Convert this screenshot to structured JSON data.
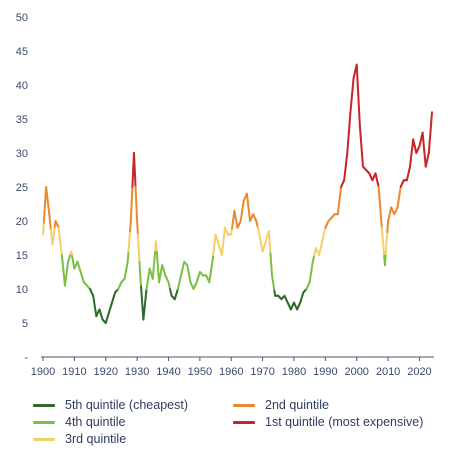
{
  "chart_data": {
    "type": "line",
    "y_ticks": [
      "-",
      "5",
      "10",
      "15",
      "20",
      "25",
      "30",
      "35",
      "40",
      "45",
      "50"
    ],
    "x_ticks": [
      "1900",
      "1910",
      "1920",
      "1930",
      "1940",
      "1950",
      "1960",
      "1970",
      "1980",
      "1990",
      "2000",
      "2010",
      "2020"
    ],
    "xlim": [
      1900,
      2024
    ],
    "ylim": [
      0,
      50
    ],
    "grid": false,
    "legend_position": "bottom",
    "bands": [
      {
        "name": "5th quintile (cheapest)",
        "color": "#2f6b2a",
        "min": 0,
        "max": 10
      },
      {
        "name": "4th quintile",
        "color": "#7bc043",
        "min": 10,
        "max": 15
      },
      {
        "name": "3rd quintile",
        "color": "#f5cf6a",
        "min": 15,
        "max": 19
      },
      {
        "name": "2nd quintile",
        "color": "#ea8a2e",
        "min": 19,
        "max": 25
      },
      {
        "name": "1st quintile (most expensive)",
        "color": "#c9242b",
        "min": 25,
        "max": 100
      }
    ],
    "x": [
      1900,
      1901,
      1902,
      1903,
      1904,
      1905,
      1906,
      1907,
      1908,
      1909,
      1910,
      1911,
      1912,
      1913,
      1914,
      1915,
      1916,
      1917,
      1918,
      1919,
      1920,
      1921,
      1922,
      1923,
      1924,
      1925,
      1926,
      1927,
      1928,
      1929,
      1930,
      1931,
      1932,
      1933,
      1934,
      1935,
      1936,
      1937,
      1938,
      1939,
      1940,
      1941,
      1942,
      1943,
      1944,
      1945,
      1946,
      1947,
      1948,
      1949,
      1950,
      1951,
      1952,
      1953,
      1954,
      1955,
      1956,
      1957,
      1958,
      1959,
      1960,
      1961,
      1962,
      1963,
      1964,
      1965,
      1966,
      1967,
      1968,
      1969,
      1970,
      1971,
      1972,
      1973,
      1974,
      1975,
      1976,
      1977,
      1978,
      1979,
      1980,
      1981,
      1982,
      1983,
      1984,
      1985,
      1986,
      1987,
      1988,
      1989,
      1990,
      1991,
      1992,
      1993,
      1994,
      1995,
      1996,
      1997,
      1998,
      1999,
      2000,
      2001,
      2002,
      2003,
      2004,
      2005,
      2006,
      2007,
      2008,
      2009,
      2010,
      2011,
      2012,
      2013,
      2014,
      2015,
      2016,
      2017,
      2018,
      2019,
      2020,
      2021,
      2022,
      2023,
      2024
    ],
    "y": [
      18,
      25,
      21,
      16.5,
      20,
      19,
      15,
      10.5,
      14,
      15.5,
      13,
      14,
      12.5,
      11,
      10.5,
      10,
      9,
      6,
      7,
      5.5,
      5,
      6.5,
      8,
      9.5,
      10,
      11,
      11.5,
      14,
      20,
      30,
      20,
      12,
      5.5,
      10,
      13,
      11.5,
      17,
      11,
      13.5,
      12,
      11,
      9,
      8.5,
      10,
      12,
      14,
      13.5,
      11,
      10,
      11,
      12.5,
      12,
      12,
      11,
      14,
      18,
      16.5,
      15,
      19,
      18,
      18,
      21.5,
      19,
      20,
      23,
      24,
      20,
      21,
      20,
      18,
      15.5,
      17,
      18.5,
      12,
      9,
      9,
      8.5,
      9,
      8,
      7,
      8,
      7,
      8,
      9.5,
      10,
      11,
      14,
      16,
      15,
      17,
      19,
      20,
      20.5,
      21,
      21,
      25,
      26,
      30,
      36,
      41,
      43,
      34,
      28,
      27.5,
      27,
      26,
      27,
      25,
      19,
      13.5,
      20,
      22,
      21,
      22,
      25,
      26,
      26,
      28,
      32,
      30,
      31,
      33,
      28,
      30,
      36
    ]
  }
}
